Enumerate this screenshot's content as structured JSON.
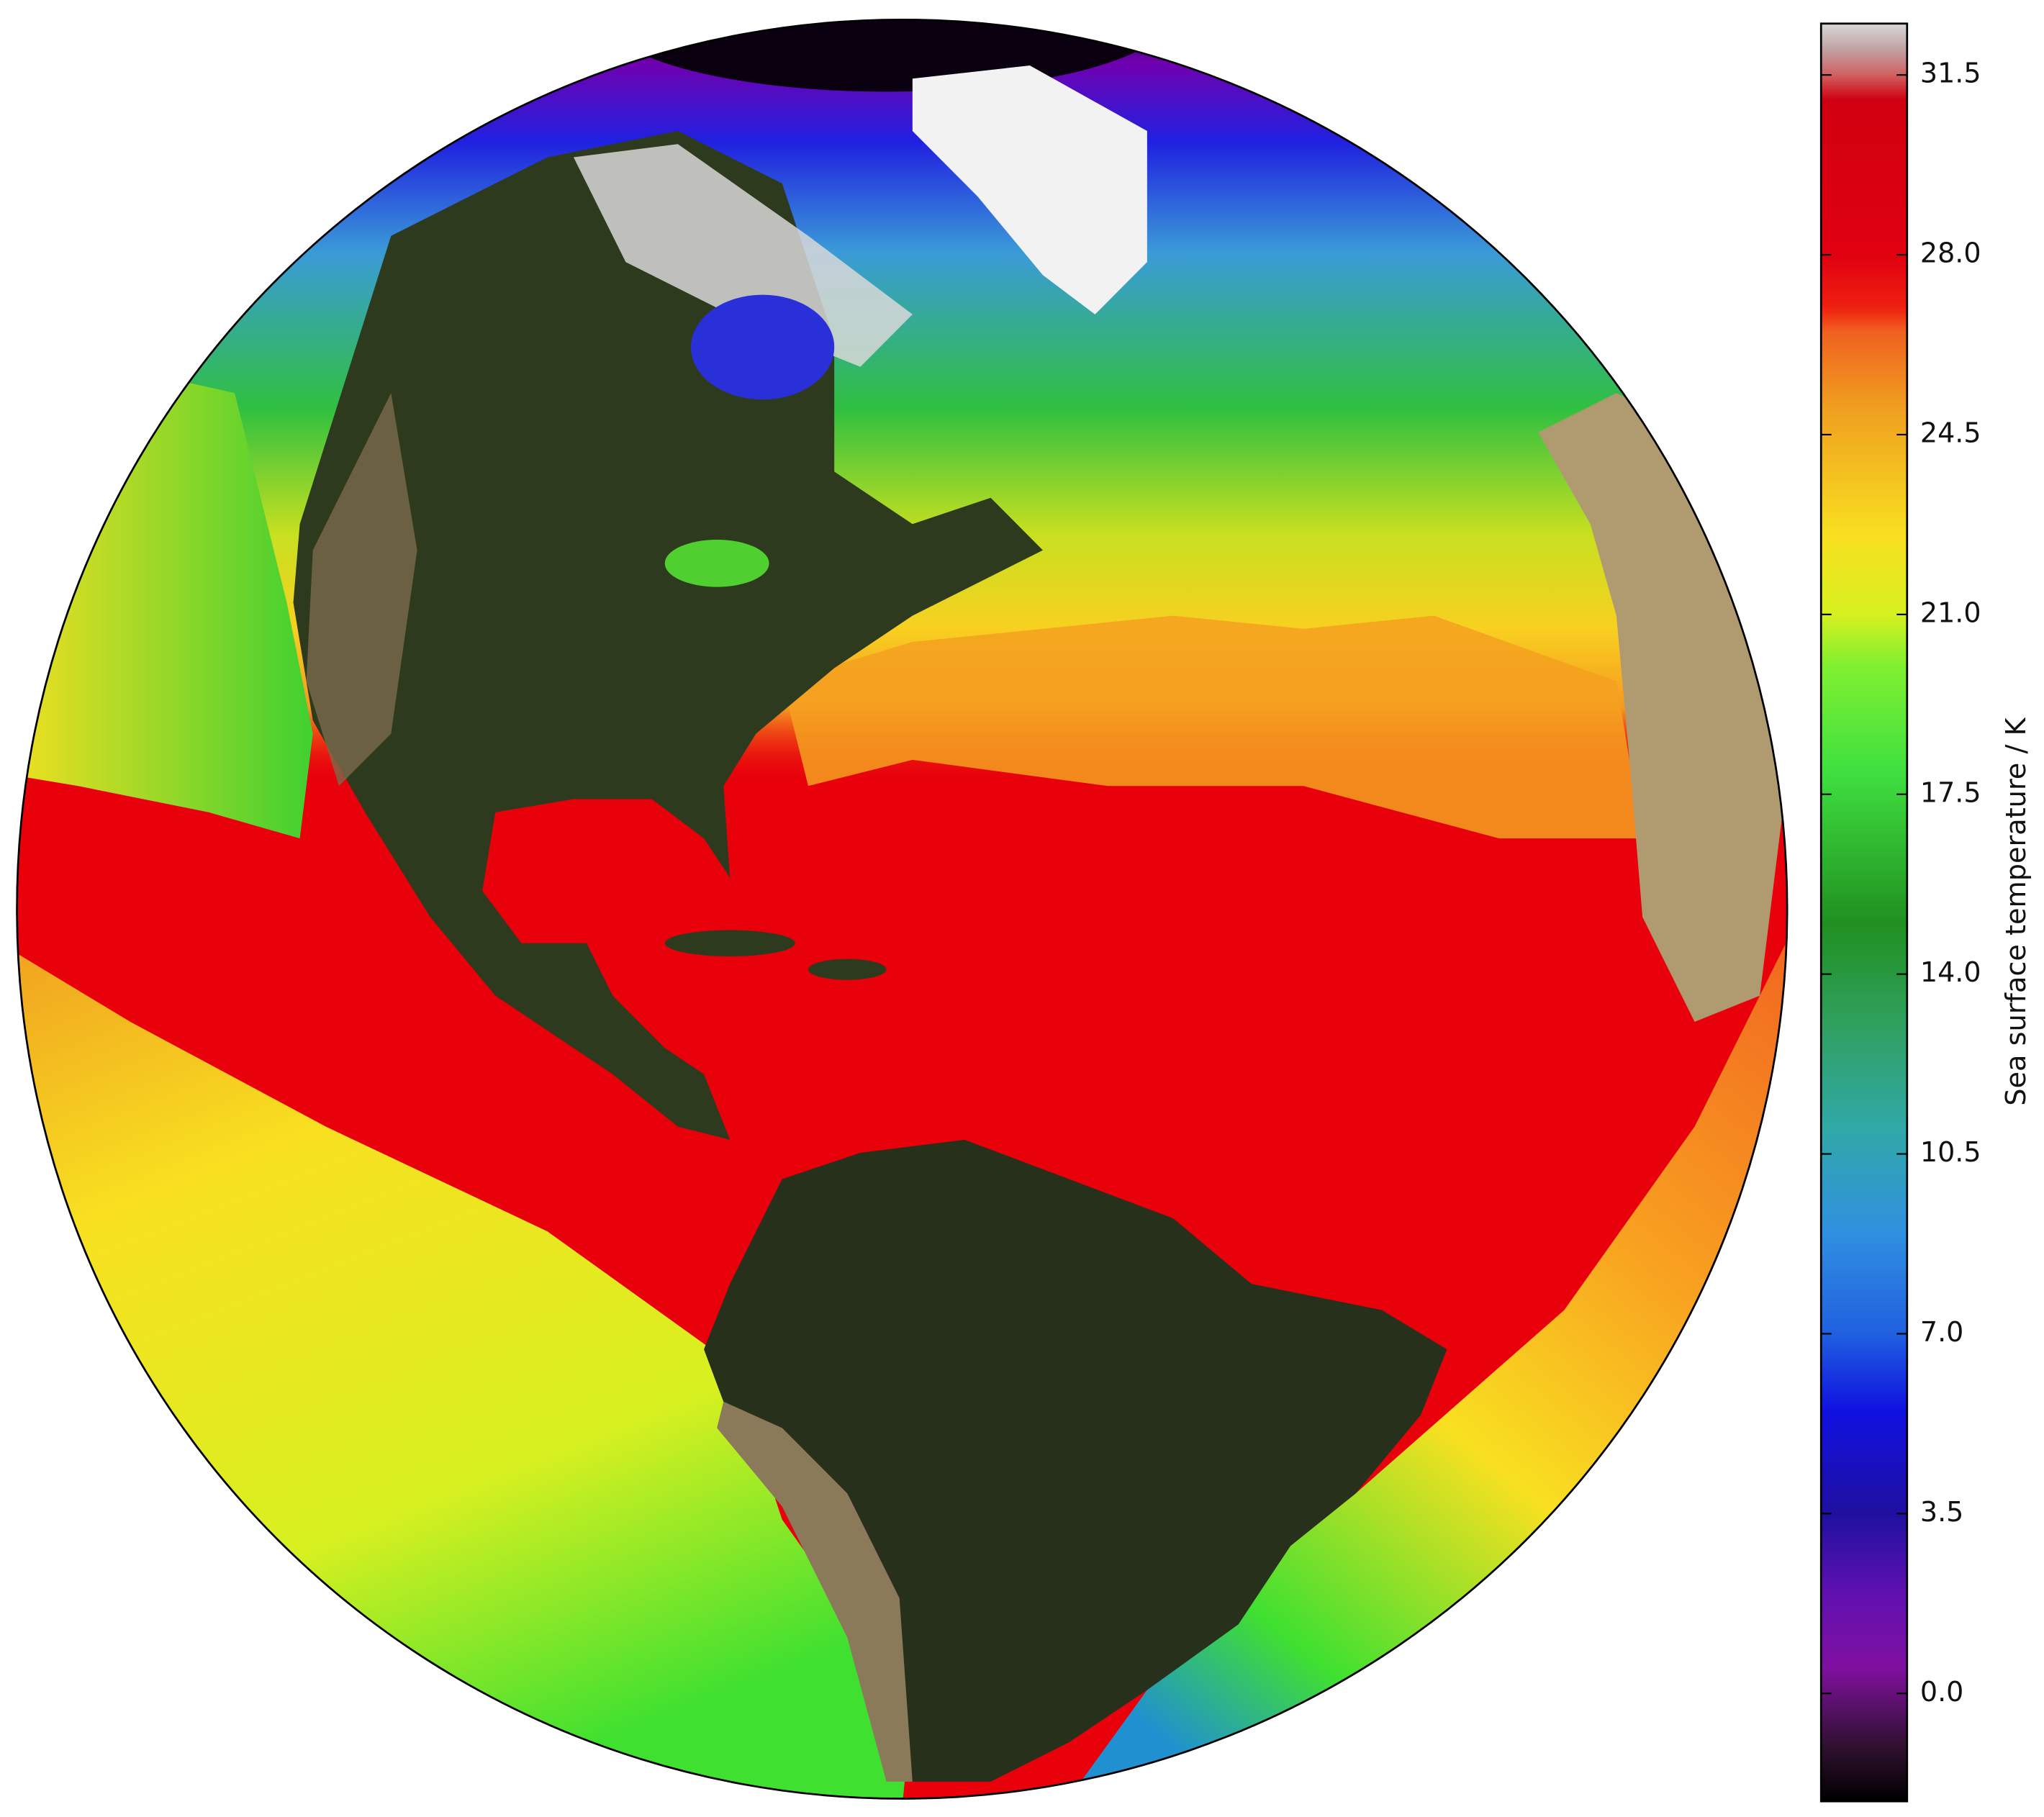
{
  "chart_data": {
    "type": "map",
    "colorbar": {
      "label": "Sea surface temperature / K",
      "lim": [
        -2.1,
        32.5
      ],
      "ticks": [
        {
          "value": 0,
          "label": "0.0"
        },
        {
          "value": 3.5,
          "label": "3.5"
        },
        {
          "value": 7,
          "label": "7.0"
        },
        {
          "value": 10.5,
          "label": "10.5"
        },
        {
          "value": 14,
          "label": "14.0"
        },
        {
          "value": 17.5,
          "label": "17.5"
        },
        {
          "value": 21,
          "label": "21.0"
        },
        {
          "value": 24.5,
          "label": "24.5"
        },
        {
          "value": 28,
          "label": "28.0"
        },
        {
          "value": 31.5,
          "label": "31.5"
        }
      ]
    }
  }
}
